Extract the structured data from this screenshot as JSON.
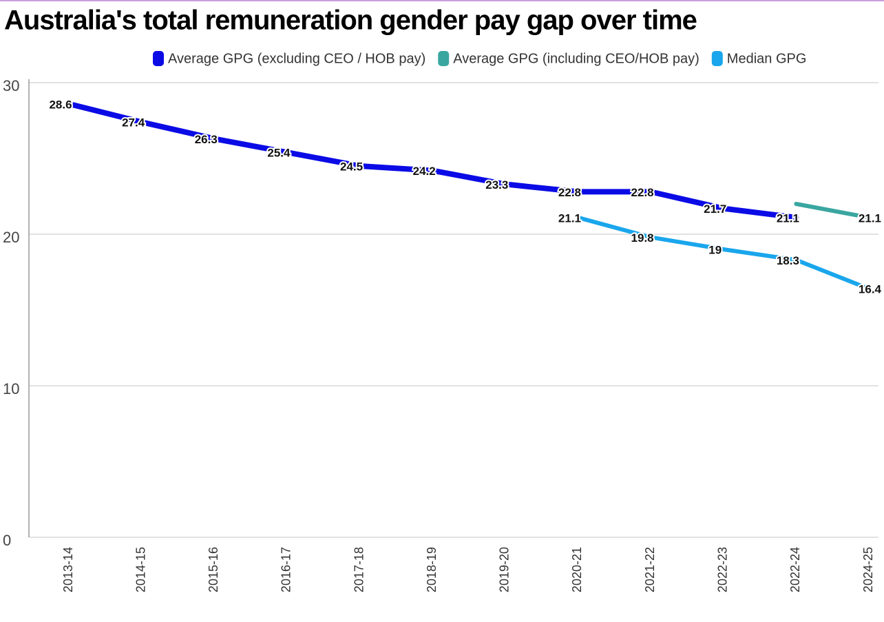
{
  "chart_data": {
    "type": "line",
    "title": "Australia's total remuneration gender pay gap over time",
    "categories": [
      "2013-14",
      "2014-15",
      "2015-16",
      "2016-17",
      "2017-18",
      "2018-19",
      "2019-20",
      "2020-21",
      "2021-22",
      "2022-23",
      "2022-24",
      "2024-25"
    ],
    "series": [
      {
        "name": "Average GPG (excluding CEO / HOB pay)",
        "color": "#0b0be6",
        "values": [
          28.6,
          27.4,
          26.3,
          25.4,
          24.5,
          24.2,
          23.3,
          22.8,
          22.8,
          21.7,
          21.1,
          null
        ]
      },
      {
        "name": "Average GPG (including CEO/HOB pay)",
        "color": "#3aa6a0",
        "values": [
          null,
          null,
          null,
          null,
          null,
          null,
          null,
          null,
          null,
          null,
          22.0,
          21.1
        ],
        "value_labels": [
          null,
          null,
          null,
          null,
          null,
          null,
          null,
          null,
          null,
          null,
          null,
          "21.1"
        ]
      },
      {
        "name": "Median GPG",
        "color": "#1aa6ec",
        "values": [
          null,
          null,
          null,
          null,
          null,
          null,
          null,
          21.1,
          19.8,
          19,
          18.3,
          16.4
        ]
      }
    ],
    "ylim": [
      0,
      30
    ],
    "yticks": [
      0,
      10,
      20,
      30
    ],
    "grid": true
  }
}
